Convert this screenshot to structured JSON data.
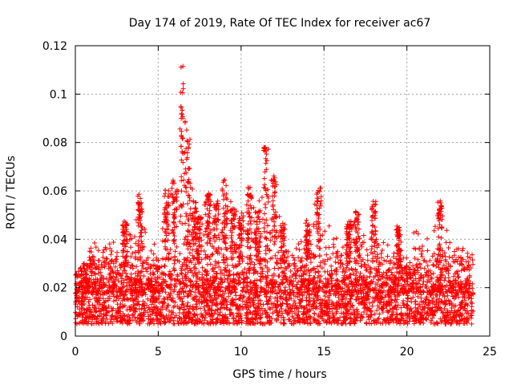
{
  "chart_data": {
    "type": "scatter",
    "title": "Day 174 of 2019, Rate Of TEC Index for receiver ac67",
    "xlabel": "GPS time / hours",
    "ylabel": "ROTI / TECUs",
    "xlim": [
      0,
      25
    ],
    "ylim": [
      0,
      0.12
    ],
    "x_ticks": [
      0,
      5,
      10,
      15,
      20,
      25
    ],
    "y_ticks": [
      0,
      0.02,
      0.04,
      0.06,
      0.08,
      0.1,
      0.12
    ],
    "x_tick_labels": [
      "0",
      "5",
      "10",
      "15",
      "20",
      "25"
    ],
    "y_tick_labels": [
      "0",
      "0.02",
      "0.04",
      "0.06",
      "0.08",
      "0.1",
      "0.12"
    ],
    "grid": true,
    "marker": "+",
    "series": [
      {
        "name": "ROTI",
        "color": "#ff0000",
        "description_of_envelope": "dense band between ~0.005 and ~0.03 from 0 to 24 h, with spikes",
        "envelope": [
          {
            "x": 0.0,
            "y": 0.025
          },
          {
            "x": 0.5,
            "y": 0.03
          },
          {
            "x": 1.0,
            "y": 0.04
          },
          {
            "x": 1.5,
            "y": 0.036
          },
          {
            "x": 2.0,
            "y": 0.04
          },
          {
            "x": 2.5,
            "y": 0.038
          },
          {
            "x": 3.0,
            "y": 0.048
          },
          {
            "x": 3.5,
            "y": 0.04
          },
          {
            "x": 3.9,
            "y": 0.059
          },
          {
            "x": 4.5,
            "y": 0.042
          },
          {
            "x": 5.0,
            "y": 0.038
          },
          {
            "x": 5.5,
            "y": 0.061
          },
          {
            "x": 6.0,
            "y": 0.065
          },
          {
            "x": 6.5,
            "y": 0.112
          },
          {
            "x": 6.8,
            "y": 0.09
          },
          {
            "x": 7.2,
            "y": 0.056
          },
          {
            "x": 7.5,
            "y": 0.05
          },
          {
            "x": 8.0,
            "y": 0.06
          },
          {
            "x": 8.5,
            "y": 0.055
          },
          {
            "x": 9.0,
            "y": 0.066
          },
          {
            "x": 9.5,
            "y": 0.053
          },
          {
            "x": 10.0,
            "y": 0.05
          },
          {
            "x": 10.5,
            "y": 0.063
          },
          {
            "x": 11.0,
            "y": 0.052
          },
          {
            "x": 11.5,
            "y": 0.079
          },
          {
            "x": 12.0,
            "y": 0.067
          },
          {
            "x": 12.5,
            "y": 0.047
          },
          {
            "x": 13.0,
            "y": 0.04
          },
          {
            "x": 13.5,
            "y": 0.044
          },
          {
            "x": 14.0,
            "y": 0.048
          },
          {
            "x": 14.7,
            "y": 0.063
          },
          {
            "x": 15.5,
            "y": 0.042
          },
          {
            "x": 16.0,
            "y": 0.04
          },
          {
            "x": 16.5,
            "y": 0.048
          },
          {
            "x": 17.0,
            "y": 0.052
          },
          {
            "x": 17.5,
            "y": 0.04
          },
          {
            "x": 18.0,
            "y": 0.057
          },
          {
            "x": 18.5,
            "y": 0.042
          },
          {
            "x": 19.0,
            "y": 0.038
          },
          {
            "x": 19.5,
            "y": 0.046
          },
          {
            "x": 20.0,
            "y": 0.04
          },
          {
            "x": 20.5,
            "y": 0.044
          },
          {
            "x": 21.0,
            "y": 0.042
          },
          {
            "x": 21.5,
            "y": 0.04
          },
          {
            "x": 22.0,
            "y": 0.056
          },
          {
            "x": 22.5,
            "y": 0.042
          },
          {
            "x": 23.0,
            "y": 0.036
          },
          {
            "x": 23.5,
            "y": 0.04
          },
          {
            "x": 24.0,
            "y": 0.035
          }
        ],
        "baseline_low": 0.005,
        "baseline_high": 0.03
      }
    ]
  }
}
